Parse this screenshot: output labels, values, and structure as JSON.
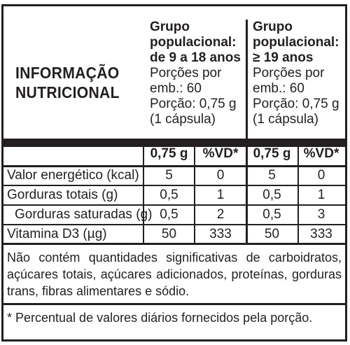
{
  "title_line1": "INFORMAÇÃO",
  "title_line2": "NUTRICIONAL",
  "groups": [
    {
      "name_line1": "Grupo",
      "name_line2": "populacional:",
      "name_line3": "de 9 a 18 anos",
      "portions_line1": "Porções por",
      "portions_line2": "emb.: 60",
      "serving_line1": "Porção: 0,75 g",
      "serving_line2": "(1 cápsula)",
      "col_amount": "0,75 g",
      "col_vd": "%VD*"
    },
    {
      "name_line1": "Grupo",
      "name_line2": "populacional:",
      "name_line3": "≥ 19 anos",
      "portions_line1": "Porções por",
      "portions_line2": "emb.: 60",
      "serving_line1": "Porção: 0,75 g",
      "serving_line2": "(1 cápsula)",
      "col_amount": "0,75 g",
      "col_vd": "%VD*"
    }
  ],
  "rows": [
    {
      "label": "Valor energético (kcal)",
      "v": [
        "5",
        "0",
        "5",
        "0"
      ]
    },
    {
      "label": "Gorduras totais (g)",
      "v": [
        "0,5",
        "1",
        "0,5",
        "1"
      ]
    },
    {
      "label": "Gorduras saturadas (g)",
      "v": [
        "0,5",
        "2",
        "0,5",
        "3"
      ]
    },
    {
      "label": "Vitamina D3 (µg)",
      "v": [
        "50",
        "333",
        "50",
        "333"
      ]
    }
  ],
  "note": "Não contém quantidades significativas de carboidratos, açúcares totais, açúcares adicionados, proteínas, gorduras trans, fibras alimentares e sódio.",
  "footnote": "* Percentual de valores diários fornecidos pela porção."
}
